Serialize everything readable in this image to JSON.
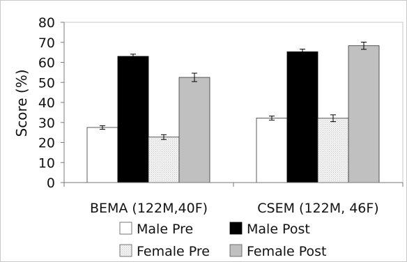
{
  "chart_data": {
    "type": "bar",
    "ylabel": "Score (%)",
    "ylim": [
      0,
      80
    ],
    "yticks": [
      0,
      10,
      20,
      30,
      40,
      50,
      60,
      70,
      80
    ],
    "categories": [
      "BEMA (122M,40F)",
      "CSEM (122M, 46F)"
    ],
    "series": [
      {
        "name": "Male Pre",
        "values": [
          27.5,
          32.2
        ],
        "errors": [
          0.9,
          1.0
        ],
        "color": "#ffffff",
        "pattern": "none"
      },
      {
        "name": "Male Post",
        "values": [
          63.0,
          65.3
        ],
        "errors": [
          1.1,
          1.3
        ],
        "color": "#000000",
        "pattern": "none"
      },
      {
        "name": "Female Pre",
        "values": [
          22.7,
          32.1
        ],
        "errors": [
          1.2,
          1.7
        ],
        "color": "#eeeeee",
        "pattern": "dots"
      },
      {
        "name": "Female Post",
        "values": [
          52.5,
          68.3
        ],
        "errors": [
          2.1,
          1.8
        ],
        "color": "#c0c0c0",
        "pattern": "none"
      }
    ],
    "legend_position": "bottom",
    "grid": false
  }
}
